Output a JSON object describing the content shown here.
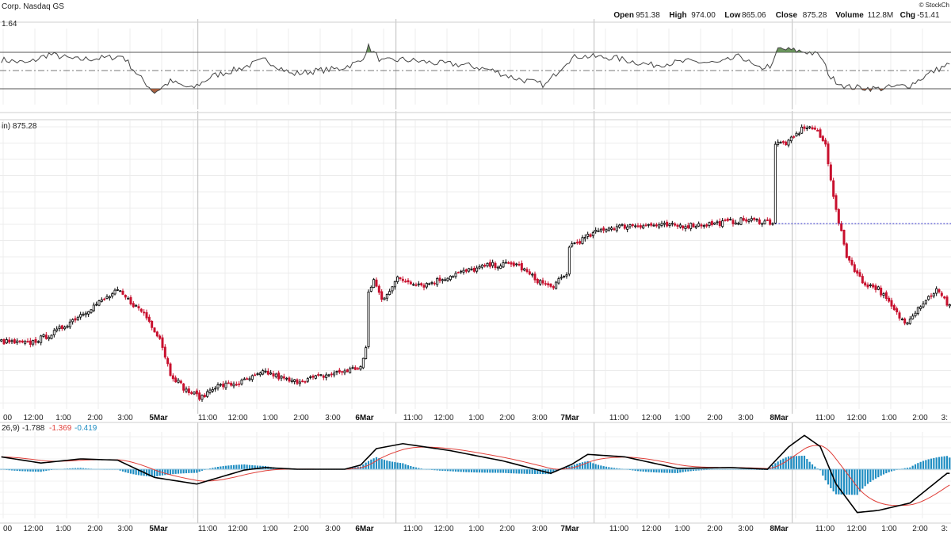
{
  "header": {
    "symbol_text": "Corp. Nasdaq GS",
    "copyright": "© StockCh",
    "ohlc": [
      {
        "label": "Open",
        "value": "951.38"
      },
      {
        "label": "High",
        "value": "974.00"
      },
      {
        "label": "Low",
        "value": "865.06"
      },
      {
        "label": "Close",
        "value": "875.28"
      },
      {
        "label": "Volume",
        "value": "112.8M"
      },
      {
        "label": "Chg",
        "value": "-51.41"
      }
    ]
  },
  "rsi_panel": {
    "label": "1.64"
  },
  "price_panel": {
    "label": "in) 875.28"
  },
  "macd_panel": {
    "label_prefix": "26,9)",
    "macd": "-1.788",
    "signal": "-1.369",
    "hist": "-0.419",
    "colors": {
      "macd": "#000000",
      "signal": "#e0403a",
      "hist": "#1f8dc2"
    }
  },
  "time_axis": [
    {
      "label": "00",
      "bold": false
    },
    {
      "label": "12:00",
      "bold": false
    },
    {
      "label": "1:00",
      "bold": false
    },
    {
      "label": "2:00",
      "bold": false
    },
    {
      "label": "3:00",
      "bold": false
    },
    {
      "label": "5Mar",
      "bold": true
    },
    {
      "label": "11:00",
      "bold": false
    },
    {
      "label": "12:00",
      "bold": false
    },
    {
      "label": "1:00",
      "bold": false
    },
    {
      "label": "2:00",
      "bold": false
    },
    {
      "label": "3:00",
      "bold": false
    },
    {
      "label": "6Mar",
      "bold": true
    },
    {
      "label": "11:00",
      "bold": false
    },
    {
      "label": "12:00",
      "bold": false
    },
    {
      "label": "1:00",
      "bold": false
    },
    {
      "label": "2:00",
      "bold": false
    },
    {
      "label": "3:00",
      "bold": false
    },
    {
      "label": "7Mar",
      "bold": true
    },
    {
      "label": "11:00",
      "bold": false
    },
    {
      "label": "12:00",
      "bold": false
    },
    {
      "label": "1:00",
      "bold": false
    },
    {
      "label": "2:00",
      "bold": false
    },
    {
      "label": "3:00",
      "bold": false
    },
    {
      "label": "8Mar",
      "bold": true
    },
    {
      "label": "11:00",
      "bold": false
    },
    {
      "label": "12:00",
      "bold": false
    },
    {
      "label": "1:00",
      "bold": false
    },
    {
      "label": "2:00",
      "bold": false
    },
    {
      "label": "3:",
      "bold": false
    }
  ],
  "chart_data": {
    "type": "candlestick",
    "title": "",
    "xlabel": "",
    "ylabel": "",
    "grid": true,
    "colors": {
      "up": "#000000",
      "down": "#c8102e",
      "rsi_line": "#444444",
      "rsi_over": "#5b8a4d",
      "rsi_under": "#a0522d",
      "last_close_line": "#3333cc"
    },
    "price_anchors": [
      {
        "i": 0,
        "v": 200
      },
      {
        "i": 10,
        "v": 196
      },
      {
        "i": 20,
        "v": 214
      },
      {
        "i": 32,
        "v": 250
      },
      {
        "i": 44,
        "v": 282
      },
      {
        "i": 54,
        "v": 246
      },
      {
        "i": 60,
        "v": 206
      },
      {
        "i": 64,
        "v": 148
      },
      {
        "i": 70,
        "v": 120
      },
      {
        "i": 76,
        "v": 108
      },
      {
        "i": 80,
        "v": 126
      },
      {
        "i": 90,
        "v": 132
      },
      {
        "i": 100,
        "v": 150
      },
      {
        "i": 110,
        "v": 134
      },
      {
        "i": 120,
        "v": 142
      },
      {
        "i": 128,
        "v": 150
      },
      {
        "i": 136,
        "v": 158
      },
      {
        "i": 138,
        "v": 186
      },
      {
        "i": 139,
        "v": 280
      },
      {
        "i": 141,
        "v": 300
      },
      {
        "i": 144,
        "v": 268
      },
      {
        "i": 150,
        "v": 302
      },
      {
        "i": 160,
        "v": 292
      },
      {
        "i": 172,
        "v": 310
      },
      {
        "i": 185,
        "v": 324
      },
      {
        "i": 195,
        "v": 326
      },
      {
        "i": 202,
        "v": 302
      },
      {
        "i": 208,
        "v": 288
      },
      {
        "i": 214,
        "v": 308
      },
      {
        "i": 215,
        "v": 356
      },
      {
        "i": 220,
        "v": 366
      },
      {
        "i": 228,
        "v": 384
      },
      {
        "i": 240,
        "v": 390
      },
      {
        "i": 255,
        "v": 388
      },
      {
        "i": 270,
        "v": 392
      },
      {
        "i": 282,
        "v": 398
      },
      {
        "i": 292,
        "v": 394
      },
      {
        "i": 293,
        "v": 522
      },
      {
        "i": 298,
        "v": 524
      },
      {
        "i": 304,
        "v": 550
      },
      {
        "i": 308,
        "v": 546
      },
      {
        "i": 312,
        "v": 520
      },
      {
        "i": 316,
        "v": 412
      },
      {
        "i": 320,
        "v": 340
      },
      {
        "i": 326,
        "v": 296
      },
      {
        "i": 332,
        "v": 286
      },
      {
        "i": 338,
        "v": 250
      },
      {
        "i": 342,
        "v": 230
      },
      {
        "i": 348,
        "v": 260
      },
      {
        "i": 354,
        "v": 284
      },
      {
        "i": 358,
        "v": 262
      }
    ],
    "rsi_anchors": [
      {
        "i": 0,
        "v": 62
      },
      {
        "i": 10,
        "v": 58
      },
      {
        "i": 18,
        "v": 68
      },
      {
        "i": 28,
        "v": 62
      },
      {
        "i": 40,
        "v": 64
      },
      {
        "i": 46,
        "v": 66
      },
      {
        "i": 52,
        "v": 44
      },
      {
        "i": 58,
        "v": 26
      },
      {
        "i": 64,
        "v": 38
      },
      {
        "i": 72,
        "v": 30
      },
      {
        "i": 80,
        "v": 44
      },
      {
        "i": 90,
        "v": 52
      },
      {
        "i": 100,
        "v": 62
      },
      {
        "i": 110,
        "v": 46
      },
      {
        "i": 120,
        "v": 50
      },
      {
        "i": 128,
        "v": 52
      },
      {
        "i": 136,
        "v": 60
      },
      {
        "i": 139,
        "v": 76
      },
      {
        "i": 144,
        "v": 60
      },
      {
        "i": 152,
        "v": 62
      },
      {
        "i": 165,
        "v": 58
      },
      {
        "i": 176,
        "v": 56
      },
      {
        "i": 186,
        "v": 50
      },
      {
        "i": 194,
        "v": 42
      },
      {
        "i": 206,
        "v": 34
      },
      {
        "i": 214,
        "v": 60
      },
      {
        "i": 218,
        "v": 66
      },
      {
        "i": 232,
        "v": 64
      },
      {
        "i": 246,
        "v": 56
      },
      {
        "i": 260,
        "v": 60
      },
      {
        "i": 272,
        "v": 58
      },
      {
        "i": 280,
        "v": 66
      },
      {
        "i": 286,
        "v": 52
      },
      {
        "i": 292,
        "v": 56
      },
      {
        "i": 294,
        "v": 74
      },
      {
        "i": 300,
        "v": 72
      },
      {
        "i": 306,
        "v": 70
      },
      {
        "i": 310,
        "v": 66
      },
      {
        "i": 314,
        "v": 42
      },
      {
        "i": 320,
        "v": 32
      },
      {
        "i": 332,
        "v": 30
      },
      {
        "i": 344,
        "v": 34
      },
      {
        "i": 352,
        "v": 48
      },
      {
        "i": 358,
        "v": 56
      }
    ],
    "macd_anchors": [
      {
        "i": 0,
        "v": 0.3
      },
      {
        "i": 15,
        "v": 0.15
      },
      {
        "i": 30,
        "v": 0.25
      },
      {
        "i": 44,
        "v": 0.22
      },
      {
        "i": 58,
        "v": -0.2
      },
      {
        "i": 74,
        "v": -0.36
      },
      {
        "i": 92,
        "v": -0.02
      },
      {
        "i": 100,
        "v": 0.04
      },
      {
        "i": 112,
        "v": 0.0
      },
      {
        "i": 130,
        "v": 0.0
      },
      {
        "i": 136,
        "v": 0.1
      },
      {
        "i": 142,
        "v": 0.5
      },
      {
        "i": 152,
        "v": 0.62
      },
      {
        "i": 170,
        "v": 0.45
      },
      {
        "i": 190,
        "v": 0.2
      },
      {
        "i": 208,
        "v": -0.1
      },
      {
        "i": 216,
        "v": 0.12
      },
      {
        "i": 222,
        "v": 0.36
      },
      {
        "i": 236,
        "v": 0.3
      },
      {
        "i": 256,
        "v": 0.02
      },
      {
        "i": 276,
        "v": 0.04
      },
      {
        "i": 290,
        "v": 0.0
      },
      {
        "i": 298,
        "v": 0.54
      },
      {
        "i": 304,
        "v": 0.82
      },
      {
        "i": 310,
        "v": 0.55
      },
      {
        "i": 316,
        "v": -0.36
      },
      {
        "i": 324,
        "v": -1.05
      },
      {
        "i": 332,
        "v": -1.0
      },
      {
        "i": 344,
        "v": -0.82
      },
      {
        "i": 358,
        "v": -0.1
      }
    ],
    "rsi_overbought": 70,
    "rsi_oversold": 30,
    "rsi_mid": 50,
    "last_close_level": 392
  }
}
